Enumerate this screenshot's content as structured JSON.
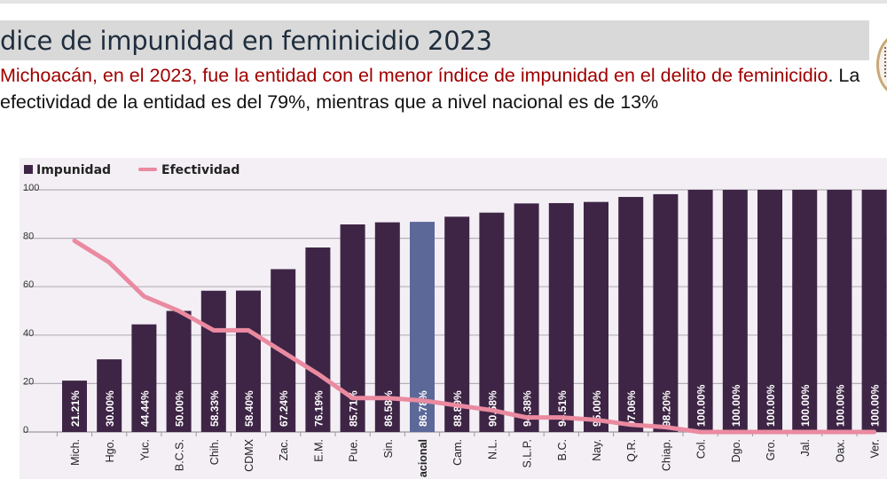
{
  "header": {
    "title": "dice de impunidad en feminicidio 2023",
    "subtitle_highlight": "Michoacán, en el 2023, fue la entidad con el menor índice de impunidad en el delito de feminicidio",
    "subtitle_rest": ". La efectividad de la entidad es del 79%, mientras que a nivel nacional es de 13%"
  },
  "colors": {
    "impunidad": "#3e2545",
    "nacional": "#5b6898",
    "efectividad": "#ea8aa0",
    "highlight_text": "#a00000"
  },
  "chart_data": {
    "type": "bar",
    "title": "",
    "xlabel": "",
    "ylabel": "",
    "ylim": [
      0,
      100
    ],
    "yticks": [
      0,
      20,
      40,
      60,
      80,
      100
    ],
    "grid": true,
    "legend": "top-left",
    "categories": [
      "Mich.",
      "Hgo.",
      "Yuc.",
      "B.C.S.",
      "Chih.",
      "CDMX",
      "Zac.",
      "E.M.",
      "Pue.",
      "Sin.",
      "acional",
      "Cam.",
      "N.L.",
      "S.L.P.",
      "B.C.",
      "Nay.",
      "Q.R.",
      "Chiap.",
      "Col.",
      "Dgo.",
      "Gro.",
      "Jal.",
      "Oax.",
      "Ver."
    ],
    "highlight_index": 10,
    "series": [
      {
        "name": "Impunidad",
        "kind": "bar",
        "values": [
          21.21,
          30.0,
          44.44,
          50.0,
          58.33,
          58.4,
          67.24,
          76.19,
          85.71,
          86.58,
          86.78,
          88.89,
          90.58,
          94.38,
          94.51,
          95.0,
          97.06,
          98.2,
          100.0,
          100.0,
          100.0,
          100.0,
          100.0,
          100.0
        ],
        "labels": [
          "21.21%",
          "30.00%",
          "44.44%",
          "50.00%",
          "58.33%",
          "58.40%",
          "67.24%",
          "76.19%",
          "85.71%",
          "86.58%",
          "86.78%",
          "88.89%",
          "90.58%",
          "94.38%",
          "94.51%",
          "95.00%",
          "97.06%",
          "98.20%",
          "100.00%",
          "100.00%",
          "100.00%",
          "100.00%",
          "100.00%",
          "100.00%"
        ]
      },
      {
        "name": "Efectividad",
        "kind": "line",
        "values": [
          79,
          70,
          56,
          50,
          42,
          42,
          33,
          24,
          14,
          14,
          13,
          11,
          9,
          6,
          6,
          5,
          3,
          2,
          0,
          0,
          0,
          0,
          0,
          0
        ]
      }
    ]
  }
}
